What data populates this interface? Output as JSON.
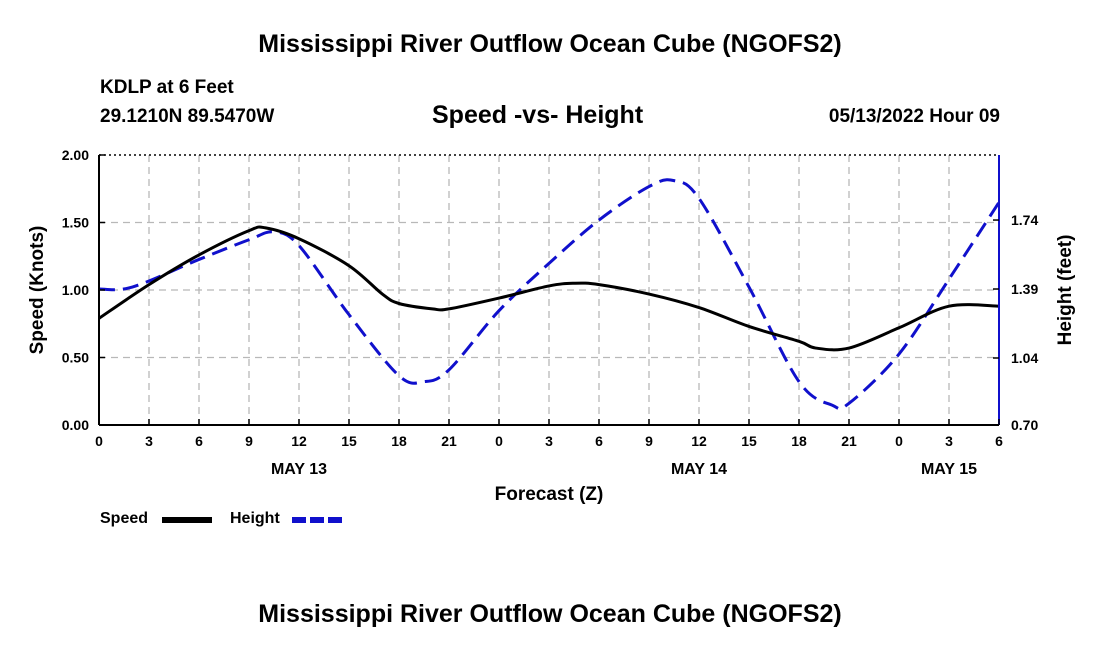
{
  "header": {
    "title": "Mississippi River Outflow Ocean Cube (NGOFS2)",
    "station": "KDLP at 6 Feet",
    "coords": "29.1210N  89.5470W",
    "datetime": "05/13/2022 Hour 09"
  },
  "footer": {
    "title": "Mississippi River Outflow Ocean Cube (NGOFS2)"
  },
  "legend": {
    "speed_label": "Speed",
    "height_label": "Height"
  },
  "colors": {
    "speed": "#000000",
    "height": "#1010cc",
    "grid": "#b8b8b8"
  },
  "chart_data": {
    "type": "line",
    "title": "Speed -vs- Height",
    "xlabel": "Forecast (Z)",
    "ylabel": "Speed (Knots)",
    "y2label": "Height (feet)",
    "x_range": [
      0,
      54
    ],
    "x_ticks": [
      0,
      3,
      6,
      9,
      12,
      15,
      18,
      21,
      24,
      27,
      30,
      33,
      36,
      39,
      42,
      45,
      48,
      51,
      54
    ],
    "x_tick_labels": [
      "0",
      "3",
      "6",
      "9",
      "12",
      "15",
      "18",
      "21",
      "0",
      "3",
      "6",
      "9",
      "12",
      "15",
      "18",
      "21",
      "0",
      "3",
      "6"
    ],
    "date_labels": [
      {
        "x": 12,
        "label": "MAY 13"
      },
      {
        "x": 36,
        "label": "MAY 14"
      },
      {
        "x": 51,
        "label": "MAY 15"
      }
    ],
    "ylim": [
      0,
      2
    ],
    "y_ticks": [
      0,
      0.5,
      1.0,
      1.5,
      2.0
    ],
    "y_tick_labels": [
      "0.00",
      "0.50",
      "1.00",
      "1.50",
      "2.00"
    ],
    "y2lim": [
      0.7,
      2.07
    ],
    "y2_ticks": [
      0.7,
      1.04,
      1.39,
      1.74
    ],
    "y2_tick_labels": [
      "0.70",
      "1.04",
      "1.39",
      "1.74"
    ],
    "grid": true,
    "series": [
      {
        "name": "Speed",
        "axis": "left",
        "style": "solid",
        "x": [
          0,
          3,
          6,
          9,
          10,
          12,
          15,
          17,
          18,
          20,
          21,
          24,
          27,
          28.5,
          30,
          33,
          36,
          39,
          42,
          43,
          45,
          48,
          51,
          54
        ],
        "values": [
          0.79,
          1.04,
          1.26,
          1.44,
          1.46,
          1.38,
          1.18,
          0.97,
          0.9,
          0.86,
          0.86,
          0.94,
          1.03,
          1.05,
          1.04,
          0.97,
          0.87,
          0.73,
          0.62,
          0.57,
          0.57,
          0.72,
          0.88,
          0.88
        ]
      },
      {
        "name": "Height",
        "axis": "right",
        "style": "dashed",
        "x": [
          0,
          2,
          6,
          9,
          10.5,
          12,
          15,
          18,
          19.5,
          21,
          24,
          27,
          30,
          33,
          34.5,
          36,
          39,
          42,
          44,
          45,
          48,
          51,
          54
        ],
        "values": [
          1.39,
          1.4,
          1.54,
          1.64,
          1.68,
          1.61,
          1.26,
          0.95,
          0.92,
          0.98,
          1.28,
          1.52,
          1.74,
          1.91,
          1.94,
          1.85,
          1.4,
          0.92,
          0.8,
          0.81,
          1.06,
          1.44,
          1.83
        ]
      }
    ]
  }
}
